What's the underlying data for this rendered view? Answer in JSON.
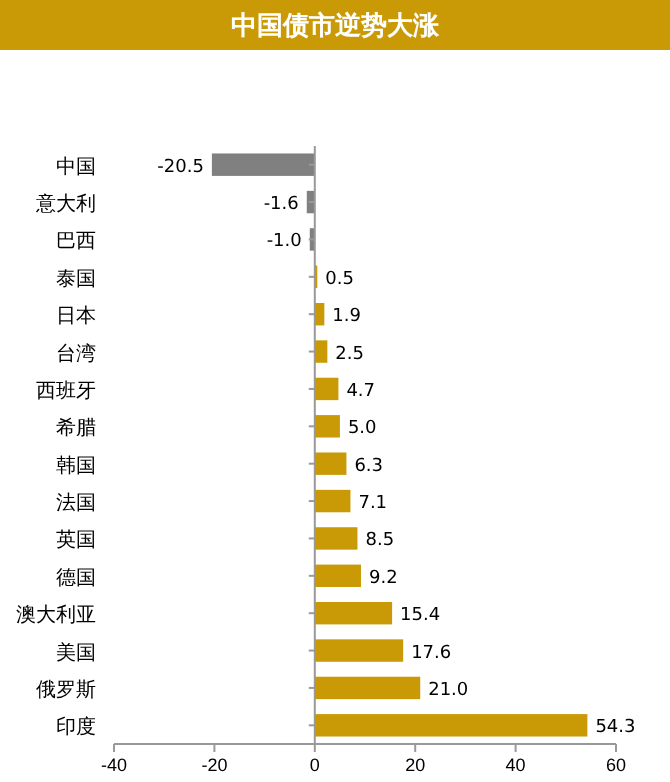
{
  "chart_data": {
    "type": "bar",
    "orientation": "horizontal",
    "title": "中国债市逆势大涨",
    "categories": [
      "中国",
      "意大利",
      "巴西",
      "泰国",
      "日本",
      "台湾",
      "西班牙",
      "希腊",
      "韩国",
      "法国",
      "英国",
      "德国",
      "澳大利亚",
      "美国",
      "俄罗斯",
      "印度"
    ],
    "values": [
      -20.5,
      -1.6,
      -1.0,
      0.5,
      1.9,
      2.5,
      4.7,
      5.0,
      6.3,
      7.1,
      8.5,
      9.2,
      15.4,
      17.6,
      21.0,
      54.3
    ],
    "colors": [
      "#808080",
      "#808080",
      "#808080",
      "#c99a06",
      "#c99a06",
      "#c99a06",
      "#c99a06",
      "#c99a06",
      "#c99a06",
      "#c99a06",
      "#c99a06",
      "#c99a06",
      "#c99a06",
      "#c99a06",
      "#c99a06",
      "#c99a06"
    ],
    "value_labels": [
      "-20.5",
      "-1.6",
      "-1.0",
      "0.5",
      "1.9",
      "2.5",
      "4.7",
      "5.0",
      "6.3",
      "7.1",
      "8.5",
      "9.2",
      "15.4",
      "17.6",
      "21.0",
      "54.3"
    ],
    "xlim": [
      -40,
      60
    ],
    "xticks": [
      -40,
      -20,
      0,
      20,
      40,
      60
    ]
  }
}
